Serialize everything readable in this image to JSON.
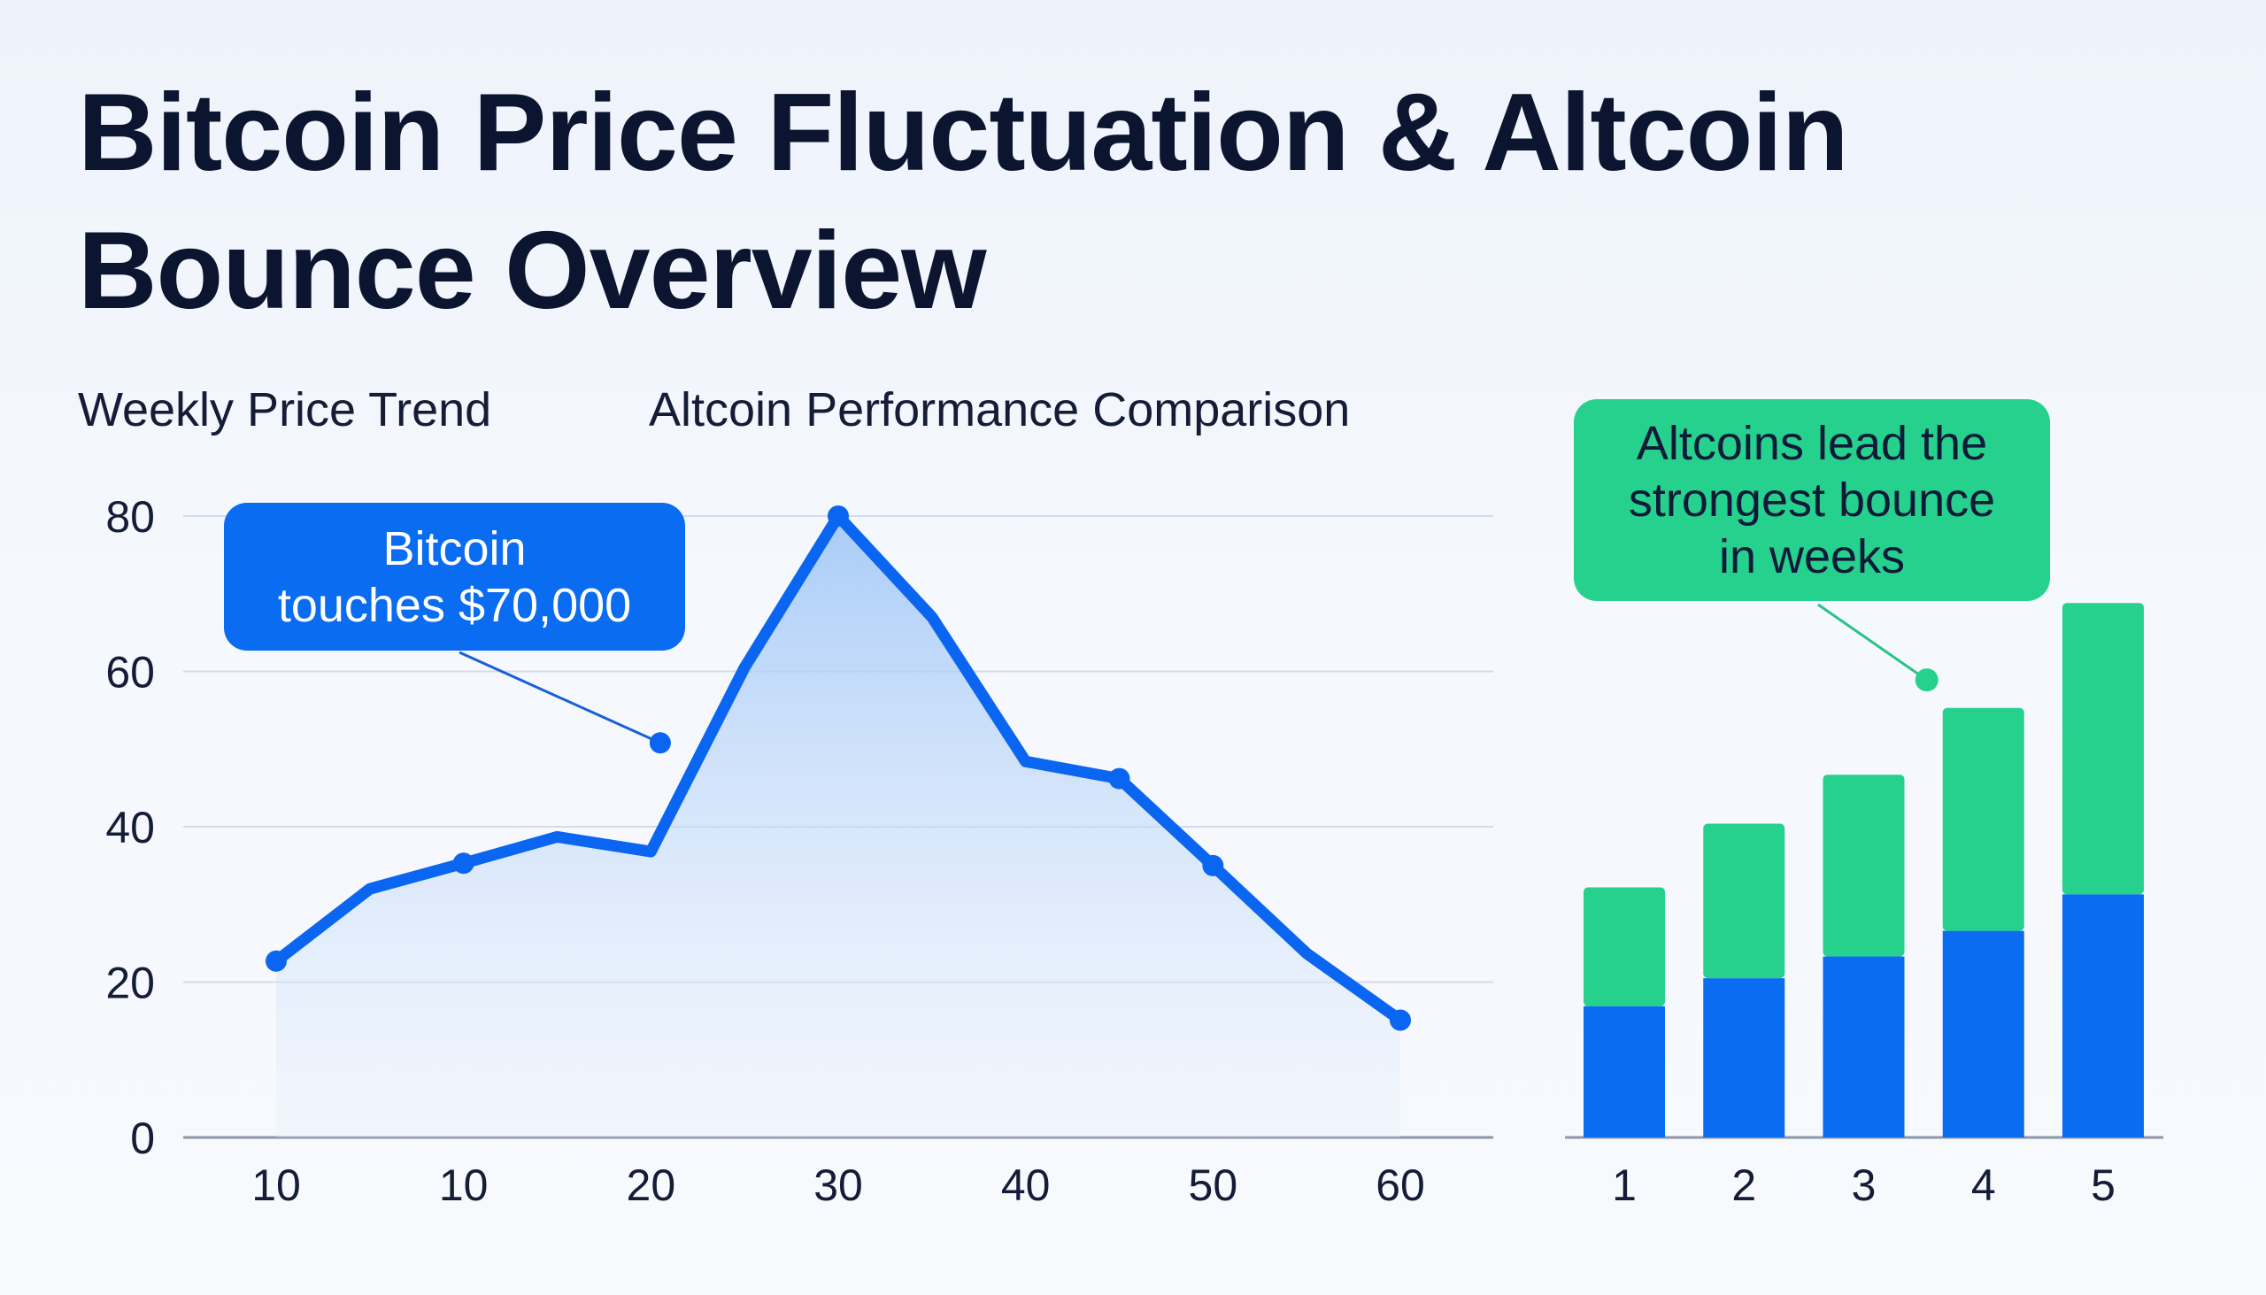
{
  "title_line1": "Bitcoin Price Fluctuation & Altcoin",
  "title_line2": "Bounce Overview",
  "colors": {
    "line": "#0a66f0",
    "bar_blue": "#0a6cf0",
    "bar_green": "#26d18e",
    "text": "#0f1733"
  },
  "chart_data": [
    {
      "type": "line",
      "title": "Weekly Price Trend",
      "x_tick_labels": [
        "10",
        "10",
        "20",
        "30",
        "40",
        "50",
        "60"
      ],
      "x": [
        0,
        0.5,
        1,
        1.5,
        2,
        2.5,
        3,
        3.5,
        4,
        4.5,
        5,
        5.5,
        6
      ],
      "y": [
        22.7,
        32,
        35.3,
        38.7,
        36.8,
        60.5,
        80,
        67,
        48.4,
        46.2,
        35,
        23.7,
        15.1
      ],
      "markers_at": [
        0,
        1,
        3,
        4.5,
        5,
        6
      ],
      "y_ticks": [
        0,
        20,
        40,
        60,
        80
      ],
      "ylim": [
        0,
        80
      ],
      "grid": true,
      "area_fill": true,
      "annotation": {
        "text_line1": "Bitcoin",
        "text_line2": "touches $70,000",
        "x": 2.05,
        "y": 50.8
      }
    },
    {
      "type": "bar",
      "stacked": true,
      "title": "Altcoin Performance Comparison",
      "categories": [
        "1",
        "2",
        "3",
        "4",
        "5"
      ],
      "series": [
        {
          "color": "#0a6cf0",
          "values": [
            16.9,
            20.5,
            23.3,
            26.6,
            31.3
          ]
        },
        {
          "color": "#26d18e",
          "values": [
            15.3,
            19.9,
            23.4,
            28.7,
            37.5
          ]
        }
      ],
      "annotation": {
        "text_line1": "Altcoins lead the",
        "text_line2": "strongest bounce",
        "text_line3": "in weeks",
        "category_index": 3,
        "y": 58.9
      }
    }
  ]
}
